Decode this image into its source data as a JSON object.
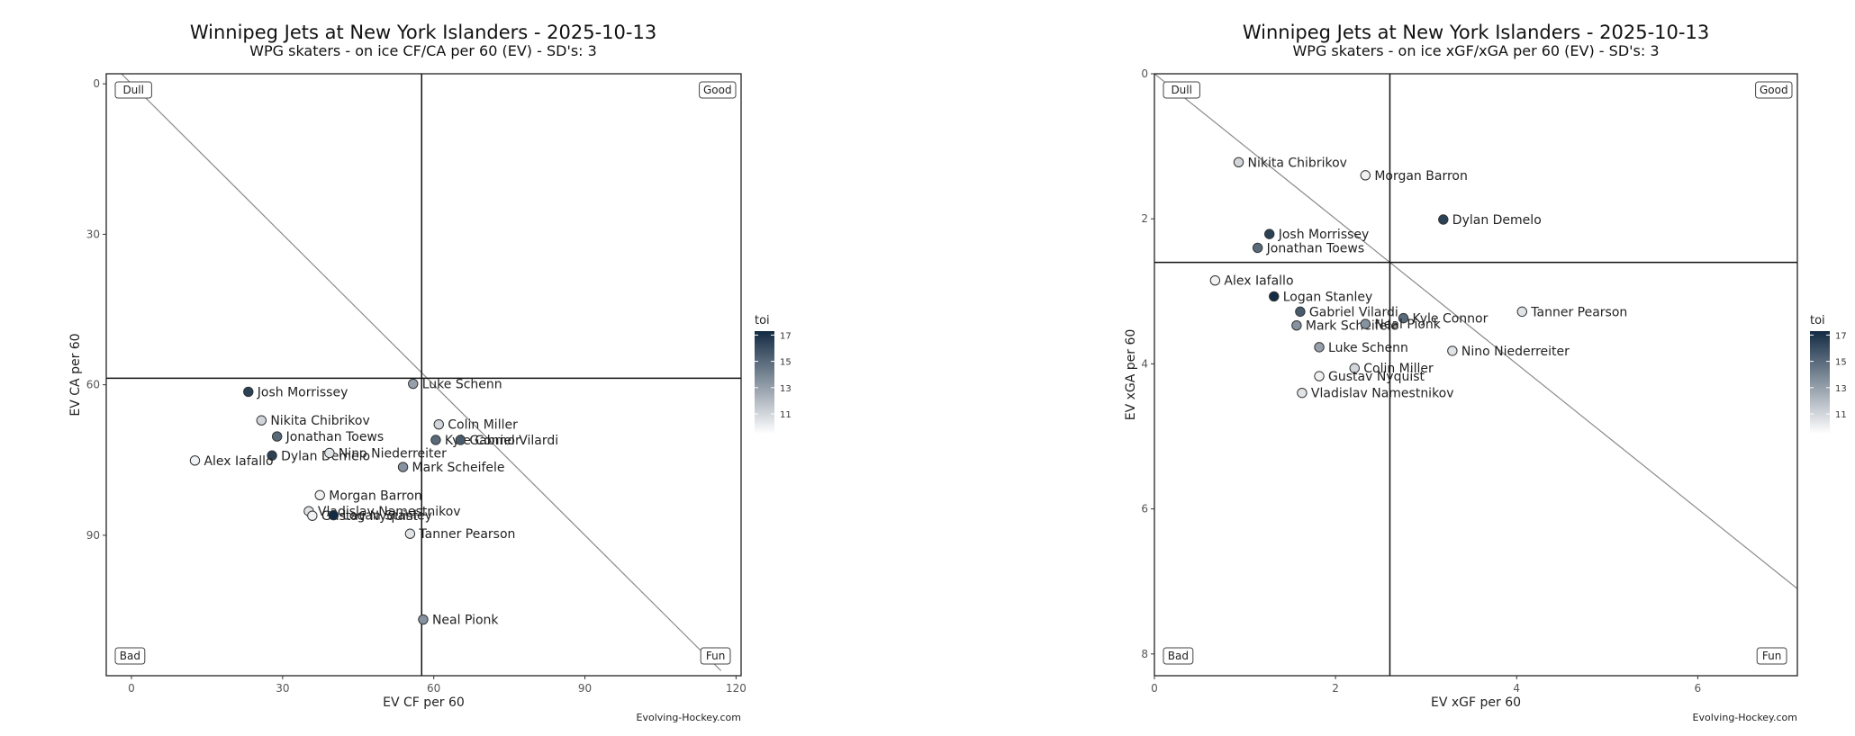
{
  "chart_data": [
    {
      "type": "scatter",
      "title": "Winnipeg Jets at New York Islanders - 2025-10-13",
      "subtitle": "WPG skaters - on ice CF/CA per 60 (EV) - SD's: 3",
      "xlabel": "EV CF per 60",
      "ylabel": "EV CA per 60",
      "xlim": [
        -5,
        121
      ],
      "ylim": [
        -2,
        118
      ],
      "y_reversed": true,
      "x_ticks": [
        0,
        30,
        60,
        90,
        120
      ],
      "y_ticks": [
        0,
        30,
        60,
        90
      ],
      "vline": 57.6,
      "hline": 58.7,
      "diagonal": [
        [
          -2,
          -2
        ],
        [
          117,
          117
        ]
      ],
      "quadrants": {
        "top_left": "Dull",
        "top_right": "Good",
        "bottom_left": "Bad",
        "bottom_right": "Fun"
      },
      "credit": "Evolving-Hockey.com",
      "legend": {
        "title": "toi",
        "min": 9.5,
        "max": 17.3,
        "ticks": [
          17,
          15,
          13,
          11
        ]
      },
      "points": [
        {
          "name": "Josh Morrissey",
          "x": 23.2,
          "y": 61.4,
          "toi": 16.5
        },
        {
          "name": "Luke Schenn",
          "x": 55.9,
          "y": 59.8,
          "toi": 13.0
        },
        {
          "name": "Nikita Chibrikov",
          "x": 25.8,
          "y": 67.1,
          "toi": 11.0
        },
        {
          "name": "Colin Miller",
          "x": 61.0,
          "y": 67.9,
          "toi": 11.0
        },
        {
          "name": "Jonathan Toews",
          "x": 28.9,
          "y": 70.3,
          "toi": 15.0
        },
        {
          "name": "Kyle Connor",
          "x": 60.4,
          "y": 71.0,
          "toi": 15.0
        },
        {
          "name": "Gabriel Vilardi",
          "x": 65.3,
          "y": 71.0,
          "toi": 15.5
        },
        {
          "name": "Dylan Demelo",
          "x": 27.9,
          "y": 74.1,
          "toi": 16.5
        },
        {
          "name": "Nino Niederreiter",
          "x": 39.3,
          "y": 73.6,
          "toi": 10.5
        },
        {
          "name": "Alex Iafallo",
          "x": 12.6,
          "y": 75.1,
          "toi": 10.0
        },
        {
          "name": "Mark Scheifele",
          "x": 53.9,
          "y": 76.4,
          "toi": 13.5
        },
        {
          "name": "Morgan Barron",
          "x": 37.4,
          "y": 82.0,
          "toi": 10.0
        },
        {
          "name": "Vladislav Namestnikov",
          "x": 35.2,
          "y": 85.2,
          "toi": 10.5
        },
        {
          "name": "Gustav Nyquist",
          "x": 35.9,
          "y": 86.1,
          "toi": 10.0
        },
        {
          "name": "Logan Stanley",
          "x": 40.1,
          "y": 86.0,
          "toi": 17.3
        },
        {
          "name": "Tanner Pearson",
          "x": 55.3,
          "y": 89.7,
          "toi": 10.5
        },
        {
          "name": "Neal Pionk",
          "x": 57.9,
          "y": 106.8,
          "toi": 13.5
        }
      ]
    },
    {
      "type": "scatter",
      "title": "Winnipeg Jets at New York Islanders - 2025-10-13",
      "subtitle": "WPG skaters - on ice xGF/xGA per 60 (EV) - SD's: 3",
      "xlabel": "EV xGF per 60",
      "ylabel": "EV xGA per 60",
      "xlim": [
        0,
        7.1
      ],
      "ylim": [
        0,
        8.3
      ],
      "y_reversed": true,
      "x_ticks": [
        0,
        2,
        4,
        6
      ],
      "y_ticks": [
        0,
        2,
        4,
        6,
        8
      ],
      "vline": 2.6,
      "hline": 2.6,
      "diagonal": [
        [
          0,
          0
        ],
        [
          7.1,
          7.1
        ]
      ],
      "quadrants": {
        "top_left": "Dull",
        "top_right": "Good",
        "bottom_left": "Bad",
        "bottom_right": "Fun"
      },
      "credit": "Evolving-Hockey.com",
      "legend": {
        "title": "toi",
        "min": 9.5,
        "max": 17.3,
        "ticks": [
          17,
          15,
          13,
          11
        ]
      },
      "points": [
        {
          "name": "Nikita Chibrikov",
          "x": 0.93,
          "y": 1.22,
          "toi": 11.0
        },
        {
          "name": "Morgan Barron",
          "x": 2.33,
          "y": 1.4,
          "toi": 10.0
        },
        {
          "name": "Dylan Demelo",
          "x": 3.19,
          "y": 2.01,
          "toi": 16.5
        },
        {
          "name": "Josh Morrissey",
          "x": 1.27,
          "y": 2.21,
          "toi": 16.5
        },
        {
          "name": "Jonathan Toews",
          "x": 1.14,
          "y": 2.4,
          "toi": 15.0
        },
        {
          "name": "Alex Iafallo",
          "x": 0.67,
          "y": 2.85,
          "toi": 10.0
        },
        {
          "name": "Logan Stanley",
          "x": 1.32,
          "y": 3.07,
          "toi": 17.3
        },
        {
          "name": "Gabriel Vilardi",
          "x": 1.61,
          "y": 3.28,
          "toi": 15.5
        },
        {
          "name": "Tanner Pearson",
          "x": 4.06,
          "y": 3.28,
          "toi": 10.5
        },
        {
          "name": "Kyle Connor",
          "x": 2.75,
          "y": 3.37,
          "toi": 15.0
        },
        {
          "name": "Mark Scheifele",
          "x": 1.57,
          "y": 3.47,
          "toi": 13.5
        },
        {
          "name": "Neal Pionk",
          "x": 2.33,
          "y": 3.45,
          "toi": 13.5
        },
        {
          "name": "Luke Schenn",
          "x": 1.82,
          "y": 3.77,
          "toi": 13.0
        },
        {
          "name": "Nino Niederreiter",
          "x": 3.29,
          "y": 3.82,
          "toi": 10.5
        },
        {
          "name": "Colin Miller",
          "x": 2.21,
          "y": 4.06,
          "toi": 11.0
        },
        {
          "name": "Gustav Nyquist",
          "x": 1.82,
          "y": 4.17,
          "toi": 10.0
        },
        {
          "name": "Vladislav Namestnikov",
          "x": 1.63,
          "y": 4.4,
          "toi": 10.5
        }
      ]
    }
  ]
}
